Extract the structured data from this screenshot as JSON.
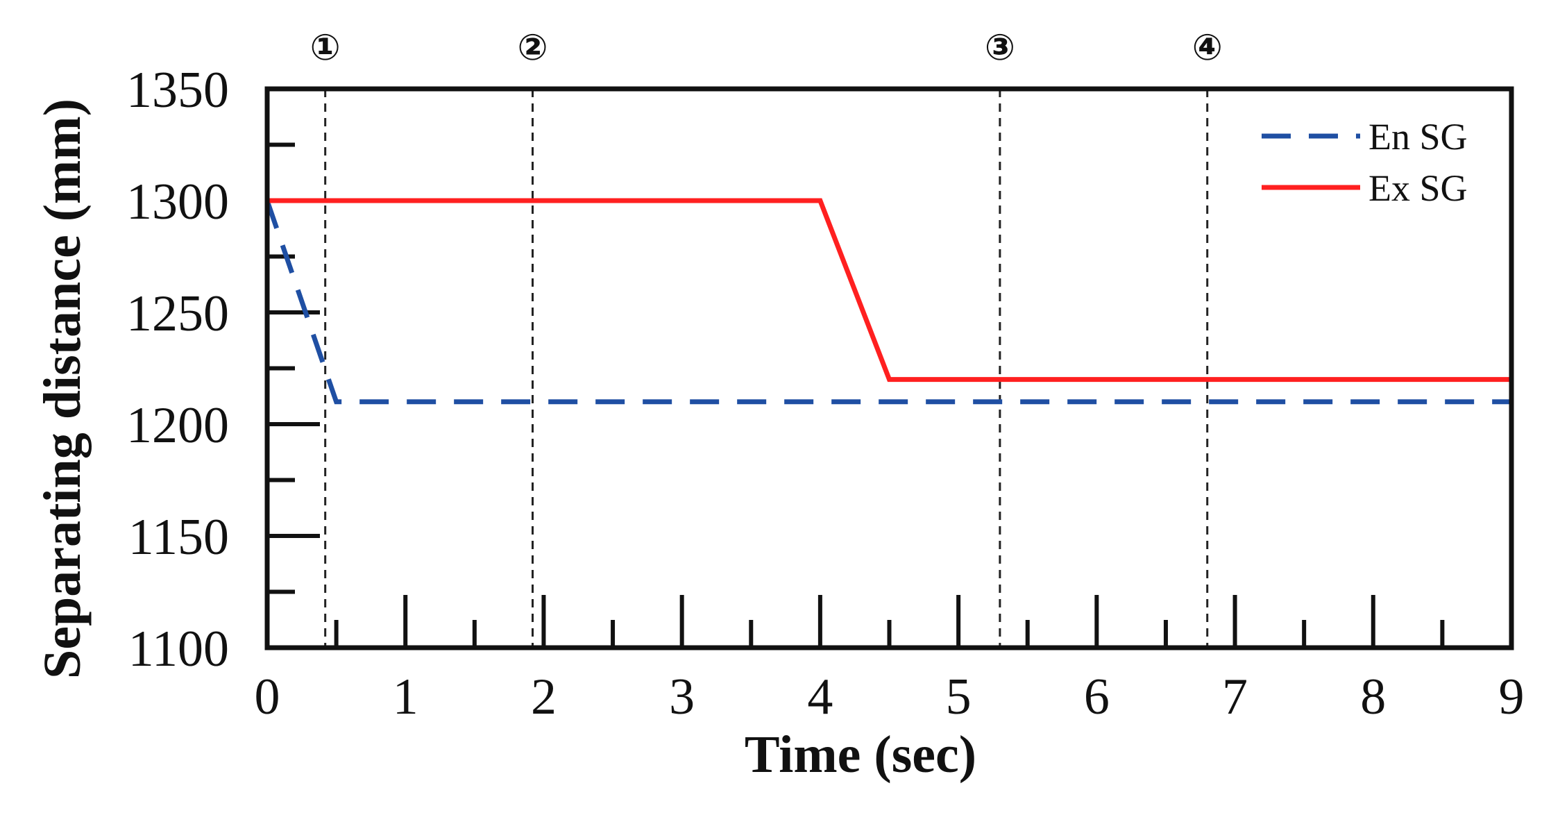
{
  "chart_data": {
    "type": "line",
    "xlabel": "Time (sec)",
    "ylabel": "Separating distance (mm)",
    "xlim": [
      0,
      9
    ],
    "ylim": [
      1100,
      1350
    ],
    "x_ticks": [
      "0",
      "1",
      "2",
      "3",
      "4",
      "5",
      "6",
      "7",
      "8",
      "9"
    ],
    "y_ticks": [
      "1100",
      "1150",
      "1200",
      "1250",
      "1300",
      "1350"
    ],
    "grid": false,
    "legend_position": "top-right",
    "series": [
      {
        "name": "En SG",
        "color": "#1f4fa3",
        "style": "dashed",
        "x": [
          0,
          0.5,
          9
        ],
        "y": [
          1300,
          1210,
          1210
        ]
      },
      {
        "name": "Ex SG",
        "color": "#ff2020",
        "style": "solid",
        "x": [
          0,
          4,
          4.5,
          9
        ],
        "y": [
          1300,
          1300,
          1220,
          1220
        ]
      }
    ],
    "annotations": [
      {
        "label": "①",
        "x": 0.42
      },
      {
        "label": "②",
        "x": 1.92
      },
      {
        "label": "③",
        "x": 5.3
      },
      {
        "label": "④",
        "x": 6.8
      }
    ]
  }
}
